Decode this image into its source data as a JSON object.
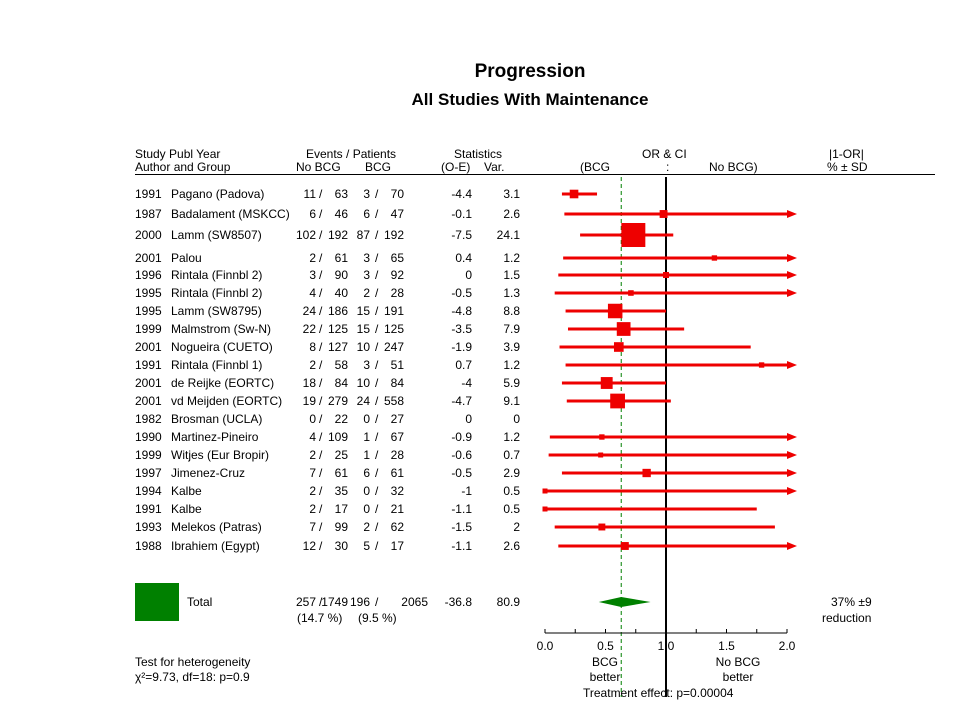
{
  "title": "Progression",
  "subtitle": "All Studies With Maintenance",
  "headers": {
    "col1_top": "Study Publ Year",
    "col1_bottom": "Author and Group",
    "events_top": "Events / Patients",
    "events_nobcg": "No BCG",
    "events_bcg": "BCG",
    "stats_top": "Statistics",
    "stats_oe": "(O-E)",
    "stats_var": "Var.",
    "or_top": "OR & CI",
    "or_bcg": "(BCG",
    "or_colon": ":",
    "or_nobcg": "No BCG)",
    "red_top": "|1-OR|",
    "red_bottom": "% ± SD"
  },
  "studies": [
    {
      "year": "1991",
      "author": "Pagano (Padova)",
      "nobcg_e": "11",
      "nobcg_n": "63",
      "bcg_e": "3",
      "bcg_n": "70",
      "oe": "-4.4",
      "var": "3.1"
    },
    {
      "year": "1987",
      "author": "Badalament (MSKCC)",
      "nobcg_e": "6",
      "nobcg_n": "46",
      "bcg_e": "6",
      "bcg_n": "47",
      "oe": "-0.1",
      "var": "2.6"
    },
    {
      "year": "2000",
      "author": "Lamm (SW8507)",
      "nobcg_e": "102",
      "nobcg_n": "192",
      "bcg_e": "87",
      "bcg_n": "192",
      "oe": "-7.5",
      "var": "24.1"
    },
    {
      "year": "2001",
      "author": "Palou",
      "nobcg_e": "2",
      "nobcg_n": "61",
      "bcg_e": "3",
      "bcg_n": "65",
      "oe": "0.4",
      "var": "1.2"
    },
    {
      "year": "1996",
      "author": "Rintala (Finnbl 2)",
      "nobcg_e": "3",
      "nobcg_n": "90",
      "bcg_e": "3",
      "bcg_n": "92",
      "oe": "0",
      "var": "1.5"
    },
    {
      "year": "1995",
      "author": "Rintala (Finnbl 2)",
      "nobcg_e": "4",
      "nobcg_n": "40",
      "bcg_e": "2",
      "bcg_n": "28",
      "oe": "-0.5",
      "var": "1.3"
    },
    {
      "year": "1995",
      "author": "Lamm (SW8795)",
      "nobcg_e": "24",
      "nobcg_n": "186",
      "bcg_e": "15",
      "bcg_n": "191",
      "oe": "-4.8",
      "var": "8.8"
    },
    {
      "year": "1999",
      "author": "Malmstrom (Sw-N)",
      "nobcg_e": "22",
      "nobcg_n": "125",
      "bcg_e": "15",
      "bcg_n": "125",
      "oe": "-3.5",
      "var": "7.9"
    },
    {
      "year": "2001",
      "author": "Nogueira (CUETO)",
      "nobcg_e": "8",
      "nobcg_n": "127",
      "bcg_e": "10",
      "bcg_n": "247",
      "oe": "-1.9",
      "var": "3.9"
    },
    {
      "year": "1991",
      "author": "Rintala (Finnbl 1)",
      "nobcg_e": "2",
      "nobcg_n": "58",
      "bcg_e": "3",
      "bcg_n": "51",
      "oe": "0.7",
      "var": "1.2"
    },
    {
      "year": "2001",
      "author": "de Reijke (EORTC)",
      "nobcg_e": "18",
      "nobcg_n": "84",
      "bcg_e": "10",
      "bcg_n": "84",
      "oe": "-4",
      "var": "5.9"
    },
    {
      "year": "2001",
      "author": "vd Meijden (EORTC)",
      "nobcg_e": "19",
      "nobcg_n": "279",
      "bcg_e": "24",
      "bcg_n": "558",
      "oe": "-4.7",
      "var": "9.1"
    },
    {
      "year": "1982",
      "author": "Brosman (UCLA)",
      "nobcg_e": "0",
      "nobcg_n": "22",
      "bcg_e": "0",
      "bcg_n": "27",
      "oe": "0",
      "var": "0"
    },
    {
      "year": "1990",
      "author": "Martinez-Pineiro",
      "nobcg_e": "4",
      "nobcg_n": "109",
      "bcg_e": "1",
      "bcg_n": "67",
      "oe": "-0.9",
      "var": "1.2"
    },
    {
      "year": "1999",
      "author": "Witjes (Eur Bropir)",
      "nobcg_e": "2",
      "nobcg_n": "25",
      "bcg_e": "1",
      "bcg_n": "28",
      "oe": "-0.6",
      "var": "0.7"
    },
    {
      "year": "1997",
      "author": "Jimenez-Cruz",
      "nobcg_e": "7",
      "nobcg_n": "61",
      "bcg_e": "6",
      "bcg_n": "61",
      "oe": "-0.5",
      "var": "2.9"
    },
    {
      "year": "1994",
      "author": "Kalbe",
      "nobcg_e": "2",
      "nobcg_n": "35",
      "bcg_e": "0",
      "bcg_n": "32",
      "oe": "-1",
      "var": "0.5"
    },
    {
      "year": "1991",
      "author": "Kalbe",
      "nobcg_e": "2",
      "nobcg_n": "17",
      "bcg_e": "0",
      "bcg_n": "21",
      "oe": "-1.1",
      "var": "0.5"
    },
    {
      "year": "1993",
      "author": "Melekos (Patras)",
      "nobcg_e": "7",
      "nobcg_n": "99",
      "bcg_e": "2",
      "bcg_n": "62",
      "oe": "-1.5",
      "var": "2"
    },
    {
      "year": "1988",
      "author": "Ibrahiem (Egypt)",
      "nobcg_e": "12",
      "nobcg_n": "30",
      "bcg_e": "5",
      "bcg_n": "17",
      "oe": "-1.1",
      "var": "2.6"
    }
  ],
  "total": {
    "label": "Total",
    "nobcg_e": "257",
    "nobcg_n": "1749",
    "bcg_e": "196",
    "bcg_n": "2065",
    "oe": "-36.8",
    "var": "80.9",
    "nobcg_pct": "(14.7 %)",
    "bcg_pct": "(9.5 %)",
    "reduction_value": "37% ±9",
    "reduction_label": "reduction"
  },
  "footer": {
    "hetero_label": "Test for heterogeneity",
    "hetero_stat": "χ²=9.73, df=18: p=0.9",
    "bcg_better_1": "BCG",
    "bcg_better_2": "better",
    "nobcg_better_1": "No BCG",
    "nobcg_better_2": "better",
    "treatment_effect": "Treatment effect: p=0.00004"
  },
  "colors": {
    "marker": "#ee0000",
    "total_box": "#008000",
    "dashed_line": "#008000"
  },
  "chart_data": {
    "type": "forest",
    "x_axis": {
      "range": [
        0,
        2.0
      ],
      "ticks": [
        "0.0",
        "0.5",
        "1.0",
        "1.5",
        "2.0"
      ],
      "minor_step": 0.25
    },
    "reference_line": 1.0,
    "pooled_or": 0.63,
    "pooled_ci": [
      0.51,
      0.79
    ],
    "points": [
      {
        "or": 0.24,
        "lo": 0.14,
        "hi": 0.43
      },
      {
        "or": 0.98,
        "lo": 0.16,
        "hi": 2.0,
        "arrow": true
      },
      {
        "or": 0.73,
        "lo": 0.29,
        "hi": 1.06
      },
      {
        "or": 1.4,
        "lo": 0.15,
        "hi": 2.0,
        "arrow": true
      },
      {
        "or": 1.0,
        "lo": 0.11,
        "hi": 2.0,
        "arrow": true
      },
      {
        "or": 0.71,
        "lo": 0.08,
        "hi": 2.0,
        "arrow": true
      },
      {
        "or": 0.58,
        "lo": 0.17,
        "hi": 1.0
      },
      {
        "or": 0.65,
        "lo": 0.19,
        "hi": 1.15
      },
      {
        "or": 0.61,
        "lo": 0.12,
        "hi": 1.7
      },
      {
        "or": 1.79,
        "lo": 0.17,
        "hi": 2.0,
        "arrow": true
      },
      {
        "or": 0.51,
        "lo": 0.14,
        "hi": 1.0
      },
      {
        "or": 0.6,
        "lo": 0.18,
        "hi": 1.04
      },
      {
        "or": null,
        "lo": null,
        "hi": null
      },
      {
        "or": 0.47,
        "lo": 0.04,
        "hi": 2.0,
        "arrow": true
      },
      {
        "or": 0.46,
        "lo": 0.03,
        "hi": 2.0,
        "arrow": true
      },
      {
        "or": 0.84,
        "lo": 0.14,
        "hi": 2.0,
        "arrow": true
      },
      {
        "or": 0.0,
        "lo": 0.0,
        "hi": 2.0,
        "arrow": true
      },
      {
        "or": 0.0,
        "lo": 0.0,
        "hi": 1.75
      },
      {
        "or": 0.47,
        "lo": 0.08,
        "hi": 1.9
      },
      {
        "or": 0.66,
        "lo": 0.11,
        "hi": 2.0,
        "arrow": true
      }
    ]
  }
}
